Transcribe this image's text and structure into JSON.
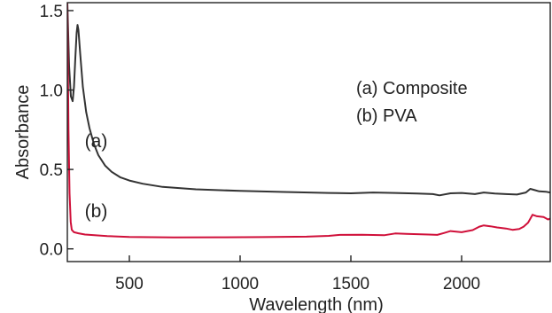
{
  "chart_data": {
    "type": "line",
    "xlabel": "Wavelength (nm)",
    "ylabel": "Absorbance",
    "xlim": [
      220,
      2400
    ],
    "ylim": [
      -0.08,
      1.55
    ],
    "xticks": [
      500,
      1000,
      1500,
      2000
    ],
    "xtick_labels": [
      "500",
      "1000",
      "1500",
      "2000"
    ],
    "yticks": [
      0.0,
      0.5,
      1.0,
      1.5
    ],
    "ytick_labels": [
      "0.0",
      "0.5",
      "1.0",
      "1.5"
    ],
    "grid": false,
    "legend_lines": [
      "(a) Composite",
      "(b) PVA"
    ],
    "legend_position": "top-right",
    "annotations": [
      {
        "text": "(a)",
        "x": 350,
        "y": 0.64
      },
      {
        "text": "(b)",
        "x": 350,
        "y": 0.2
      }
    ],
    "series": [
      {
        "label": "(a)",
        "color": "#333333",
        "points": [
          [
            220,
            1.55
          ],
          [
            228,
            1.15
          ],
          [
            236,
            0.96
          ],
          [
            244,
            0.93
          ],
          [
            250,
            1.02
          ],
          [
            256,
            1.2
          ],
          [
            262,
            1.36
          ],
          [
            266,
            1.41
          ],
          [
            270,
            1.38
          ],
          [
            278,
            1.23
          ],
          [
            290,
            1.02
          ],
          [
            305,
            0.86
          ],
          [
            320,
            0.76
          ],
          [
            340,
            0.66
          ],
          [
            360,
            0.59
          ],
          [
            390,
            0.525
          ],
          [
            420,
            0.485
          ],
          [
            460,
            0.45
          ],
          [
            500,
            0.43
          ],
          [
            560,
            0.41
          ],
          [
            650,
            0.39
          ],
          [
            800,
            0.375
          ],
          [
            1000,
            0.365
          ],
          [
            1200,
            0.358
          ],
          [
            1400,
            0.352
          ],
          [
            1500,
            0.35
          ],
          [
            1600,
            0.355
          ],
          [
            1700,
            0.352
          ],
          [
            1800,
            0.348
          ],
          [
            1870,
            0.345
          ],
          [
            1900,
            0.337
          ],
          [
            1950,
            0.35
          ],
          [
            2000,
            0.352
          ],
          [
            2060,
            0.345
          ],
          [
            2100,
            0.355
          ],
          [
            2150,
            0.348
          ],
          [
            2200,
            0.345
          ],
          [
            2250,
            0.342
          ],
          [
            2290,
            0.355
          ],
          [
            2310,
            0.378
          ],
          [
            2330,
            0.37
          ],
          [
            2350,
            0.362
          ],
          [
            2380,
            0.36
          ],
          [
            2400,
            0.355
          ]
        ]
      },
      {
        "label": "(b)",
        "color": "#d0103a",
        "points": [
          [
            220,
            1.55
          ],
          [
            225,
            0.75
          ],
          [
            230,
            0.35
          ],
          [
            235,
            0.17
          ],
          [
            240,
            0.12
          ],
          [
            250,
            0.105
          ],
          [
            270,
            0.098
          ],
          [
            300,
            0.09
          ],
          [
            400,
            0.08
          ],
          [
            500,
            0.075
          ],
          [
            700,
            0.072
          ],
          [
            900,
            0.073
          ],
          [
            1100,
            0.074
          ],
          [
            1300,
            0.077
          ],
          [
            1400,
            0.082
          ],
          [
            1450,
            0.088
          ],
          [
            1550,
            0.089
          ],
          [
            1650,
            0.086
          ],
          [
            1700,
            0.097
          ],
          [
            1750,
            0.094
          ],
          [
            1850,
            0.09
          ],
          [
            1890,
            0.088
          ],
          [
            1920,
            0.1
          ],
          [
            1950,
            0.112
          ],
          [
            2000,
            0.105
          ],
          [
            2050,
            0.118
          ],
          [
            2080,
            0.14
          ],
          [
            2100,
            0.148
          ],
          [
            2130,
            0.142
          ],
          [
            2160,
            0.135
          ],
          [
            2200,
            0.128
          ],
          [
            2230,
            0.12
          ],
          [
            2260,
            0.125
          ],
          [
            2280,
            0.14
          ],
          [
            2300,
            0.165
          ],
          [
            2320,
            0.215
          ],
          [
            2340,
            0.205
          ],
          [
            2370,
            0.2
          ],
          [
            2390,
            0.185
          ],
          [
            2400,
            0.19
          ]
        ]
      }
    ]
  }
}
